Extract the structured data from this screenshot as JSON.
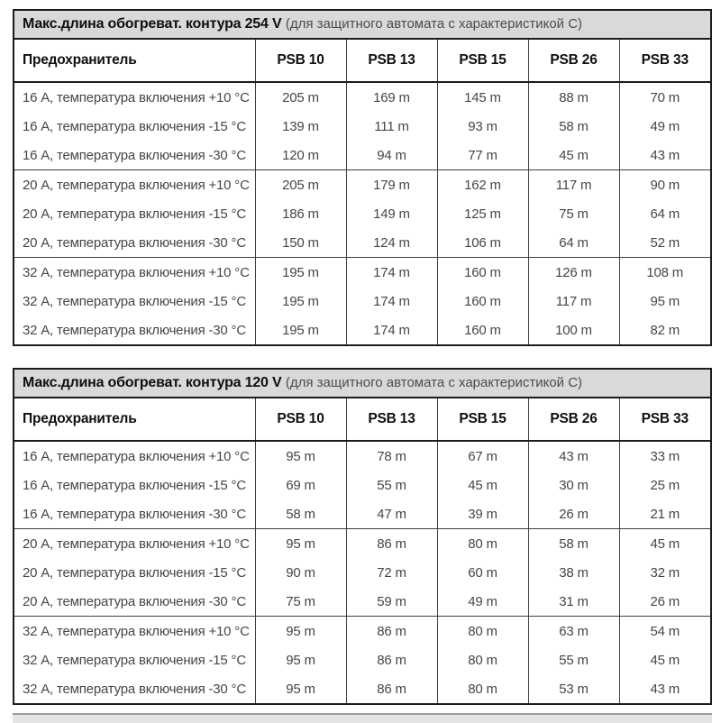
{
  "colors": {
    "title_bg": "#d9d9d9",
    "border": "#1b1b1b",
    "body_text": "#464646",
    "header_text": "#101010"
  },
  "tables": [
    {
      "title_bold": "Макс.длина обогреват. контура 254 V",
      "title_note": "(для защитного автомата с характеристикой С)",
      "header": [
        "Предохранитель",
        "PSB 10",
        "PSB 13",
        "PSB 15",
        "PSB 26",
        "PSB 33"
      ],
      "groups": [
        {
          "rows": [
            {
              "label": "16 А, температура включения +10 °C",
              "values": [
                "205 m",
                "169 m",
                "145 m",
                "88 m",
                "70 m"
              ]
            },
            {
              "label": "16 А, температура включения -15 °C",
              "values": [
                "139 m",
                "111 m",
                "93 m",
                "58 m",
                "49 m"
              ]
            },
            {
              "label": "16 А, температура включения -30 °C",
              "values": [
                "120 m",
                "94 m",
                "77 m",
                "45 m",
                "43 m"
              ]
            }
          ]
        },
        {
          "rows": [
            {
              "label": "20 А, температура включения +10 °C",
              "values": [
                "205 m",
                "179 m",
                "162 m",
                "117 m",
                "90 m"
              ]
            },
            {
              "label": "20 А, температура включения -15 °C",
              "values": [
                "186 m",
                "149 m",
                "125 m",
                "75 m",
                "64 m"
              ]
            },
            {
              "label": "20 А, температура включения -30 °C",
              "values": [
                "150 m",
                "124 m",
                "106 m",
                "64 m",
                "52 m"
              ]
            }
          ]
        },
        {
          "rows": [
            {
              "label": "32 А, температура включения +10 °C",
              "values": [
                "195 m",
                "174 m",
                "160 m",
                "126 m",
                "108 m"
              ]
            },
            {
              "label": "32 А, температура включения -15 °C",
              "values": [
                "195 m",
                "174 m",
                "160 m",
                "117 m",
                "95 m"
              ]
            },
            {
              "label": "32 А, температура включения -30 °C",
              "values": [
                "195 m",
                "174 m",
                "160 m",
                "100 m",
                "82 m"
              ]
            }
          ]
        }
      ]
    },
    {
      "title_bold": "Макс.длина обогреват. контура 120 V",
      "title_note": "(для защитного автомата с характеристикой С)",
      "header": [
        "Предохранитель",
        "PSB 10",
        "PSB 13",
        "PSB 15",
        "PSB 26",
        "PSB 33"
      ],
      "groups": [
        {
          "rows": [
            {
              "label": "16 А, температура включения +10 °C",
              "values": [
                "95 m",
                "78 m",
                "67 m",
                "43 m",
                "33 m"
              ]
            },
            {
              "label": "16 А, температура включения -15 °C",
              "values": [
                "69 m",
                "55 m",
                "45 m",
                "30 m",
                "25 m"
              ]
            },
            {
              "label": "16 А, температура включения -30 °C",
              "values": [
                "58 m",
                "47 m",
                "39 m",
                "26 m",
                "21 m"
              ]
            }
          ]
        },
        {
          "rows": [
            {
              "label": "20 А, температура включения +10 °C",
              "values": [
                "95 m",
                "86 m",
                "80 m",
                "58 m",
                "45 m"
              ]
            },
            {
              "label": "20 А, температура включения -15 °C",
              "values": [
                "90 m",
                "72 m",
                "60 m",
                "38 m",
                "32 m"
              ]
            },
            {
              "label": "20 А, температура включения -30 °C",
              "values": [
                "75 m",
                "59 m",
                "49 m",
                "31 m",
                "26 m"
              ]
            }
          ]
        },
        {
          "rows": [
            {
              "label": "32 А, температура включения +10 °C",
              "values": [
                "95 m",
                "86 m",
                "80 m",
                "63 m",
                "54 m"
              ]
            },
            {
              "label": "32 А, температура включения -15 °C",
              "values": [
                "95 m",
                "86 m",
                "80 m",
                "55 m",
                "45 m"
              ]
            },
            {
              "label": "32 А, температура включения -30 °C",
              "values": [
                "95 m",
                "86 m",
                "80 m",
                "53 m",
                "43 m"
              ]
            }
          ]
        }
      ]
    }
  ]
}
